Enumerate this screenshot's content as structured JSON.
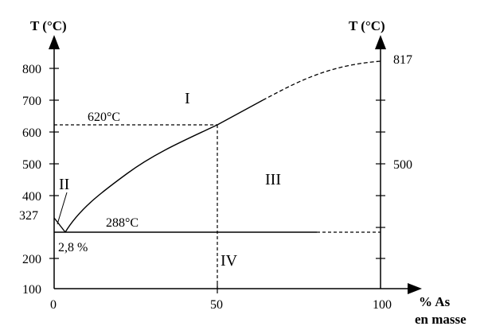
{
  "left_axis": {
    "title": "T (°C)",
    "ticks": [
      "800",
      "700",
      "600",
      "500",
      "400",
      "200",
      "100"
    ],
    "extra_label": "327"
  },
  "right_axis": {
    "title": "T (°C)",
    "labels": [
      "817",
      "500"
    ]
  },
  "x_axis": {
    "title_line1": "% As",
    "title_line2": "en masse",
    "ticks": [
      "0",
      "50",
      "100"
    ]
  },
  "regions": [
    "I",
    "II",
    "III",
    "IV"
  ],
  "annotations": {
    "peritectic_temp": "620°C",
    "eutectic_temp": "288°C",
    "eutectic_comp": "2,8 %"
  },
  "chart_data": {
    "type": "phase-diagram",
    "xlim": [
      0,
      100
    ],
    "ylim": [
      100,
      850
    ],
    "liquidus": [
      [
        0,
        327
      ],
      [
        2.8,
        288
      ],
      [
        10,
        390
      ],
      [
        25,
        500
      ],
      [
        38,
        560
      ],
      [
        50,
        620
      ],
      [
        65,
        700
      ],
      [
        75,
        760
      ],
      [
        88,
        805
      ],
      [
        100,
        817
      ]
    ],
    "eutectic_line": {
      "y": 288,
      "x": [
        0,
        100
      ]
    },
    "peritectic_line": {
      "y": 620,
      "x": [
        0,
        50
      ]
    },
    "compound_line": {
      "x": 50,
      "y": [
        100,
        620
      ]
    }
  }
}
